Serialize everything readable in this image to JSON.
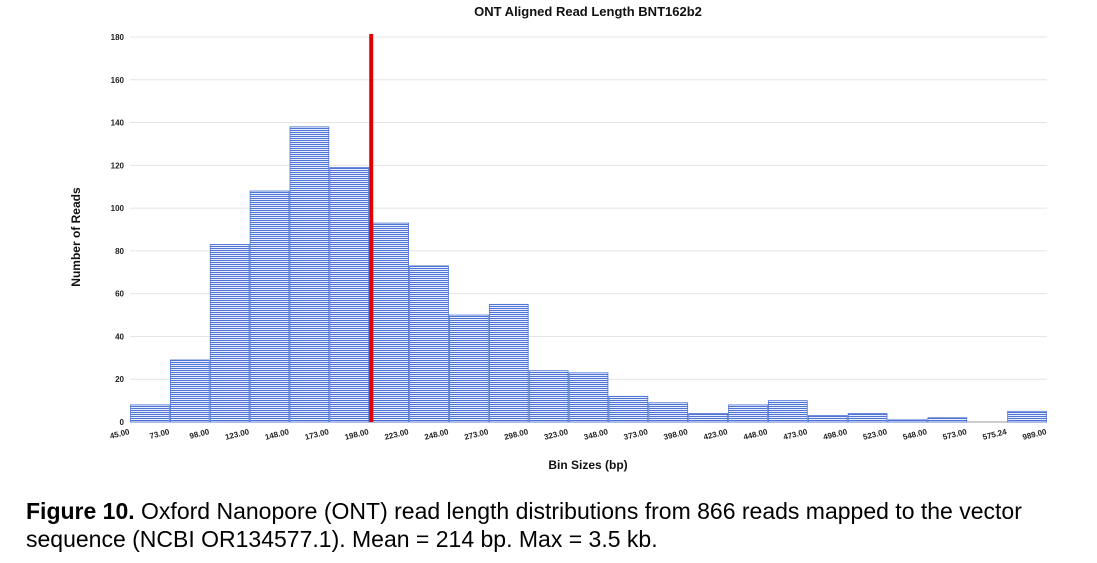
{
  "chart_data": {
    "type": "bar",
    "title": "ONT Aligned Read Length BNT162b2",
    "xlabel": "Bin Sizes (bp)",
    "ylabel": "Number of Reads",
    "ylim": [
      0,
      180
    ],
    "yticks": [
      0,
      20,
      40,
      60,
      80,
      100,
      120,
      140,
      160,
      180
    ],
    "bin_edges": [
      "45.00",
      "73.00",
      "98.00",
      "123.00",
      "148.00",
      "173.00",
      "198.00",
      "223.00",
      "248.00",
      "273.00",
      "298.00",
      "323.00",
      "348.00",
      "373.00",
      "398.00",
      "423.00",
      "448.00",
      "473.00",
      "498.00",
      "523.00",
      "548.00",
      "573.00",
      "575.24",
      "989.00"
    ],
    "values": [
      8,
      29,
      83,
      108,
      138,
      119,
      93,
      73,
      50,
      55,
      24,
      23,
      12,
      9,
      4,
      8,
      10,
      3,
      4,
      1,
      2,
      0,
      5
    ],
    "grid": true,
    "bar_color": "#4f74d4",
    "marker_line": {
      "x": 198.0,
      "color": "#e00000"
    }
  },
  "caption": {
    "label": "Figure 10.",
    "text": "Oxford Nanopore (ONT) read length distributions from 866 reads mapped to the vector sequence (NCBI OR134577.1). Mean = 214 bp. Max = 3.5 kb."
  }
}
